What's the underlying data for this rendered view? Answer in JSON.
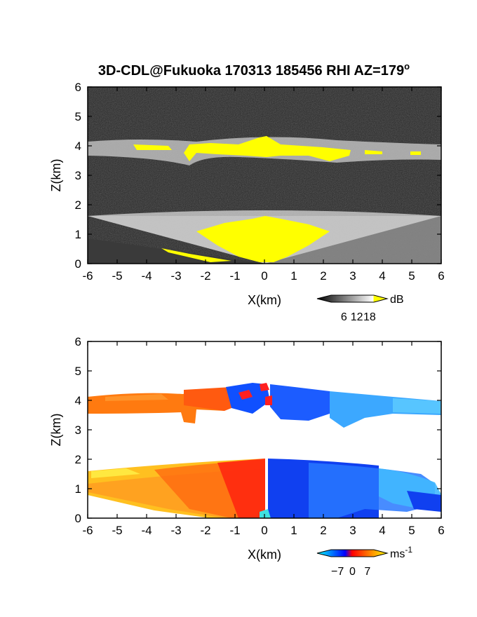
{
  "title": "3D-CDL@Fukuoka 170313 185456 RHI AZ=179",
  "title_degree_symbol": "o",
  "chart_data": [
    {
      "type": "heatmap",
      "name": "reflectivity-panel",
      "xlabel": "X(km)",
      "ylabel": "Z(km)",
      "xlim": [
        -6,
        6
      ],
      "ylim": [
        0,
        6
      ],
      "xticks": [
        -6,
        -5,
        -4,
        -3,
        -2,
        -1,
        0,
        1,
        2,
        3,
        4,
        5,
        6
      ],
      "yticks": [
        0,
        1,
        2,
        3,
        4,
        5,
        6
      ],
      "colorbar": {
        "label": "dB",
        "ticks": [
          6,
          12,
          18
        ],
        "range": [
          0,
          20
        ],
        "colors": [
          "#000000",
          "#ffffff",
          "#ffff00"
        ]
      },
      "features": {
        "cloud_layer_z_km": [
          3.4,
          4.2
        ],
        "boundary_layer_top_km": 1.7,
        "saturated_cloud_base_km": 3.8
      }
    },
    {
      "type": "heatmap",
      "name": "doppler-velocity-panel",
      "xlabel": "X(km)",
      "ylabel": "Z(km)",
      "xlim": [
        -6,
        6
      ],
      "ylim": [
        0,
        6
      ],
      "xticks": [
        -6,
        -5,
        -4,
        -3,
        -2,
        -1,
        0,
        1,
        2,
        3,
        4,
        5,
        6
      ],
      "yticks": [
        0,
        1,
        2,
        3,
        4,
        5,
        6
      ],
      "colorbar": {
        "label": "ms",
        "label_superscript": "-1",
        "ticks": [
          -7,
          0,
          7
        ],
        "range": [
          -10,
          10
        ],
        "colors": [
          "#00ffff",
          "#0000ff",
          "#ff0000",
          "#ffff00"
        ]
      },
      "features": {
        "cloud_layer_z_km": [
          3.3,
          4.4
        ],
        "boundary_layer_top_km": 1.9,
        "zero_velocity_line_x_km": 0.1
      }
    }
  ]
}
